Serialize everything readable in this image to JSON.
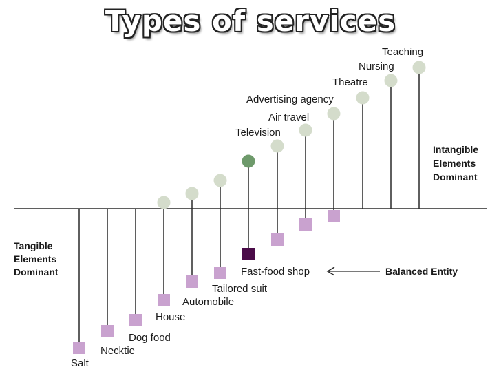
{
  "title": "Types of services",
  "left_label": [
    "Tangible",
    "Elements",
    "Dominant"
  ],
  "right_label": [
    "Intangible",
    "Elements",
    "Dominant"
  ],
  "balanced_label": "Balanced Entity",
  "colors": {
    "tangible": "#c9a2cf",
    "intangible": "#d4dccb",
    "balanced_square": "#4a0b48",
    "balanced_circle": "#6e9a6b",
    "line": "#2a2a2a"
  },
  "items": [
    {
      "label": "Salt",
      "type": "tangible"
    },
    {
      "label": "Necktie",
      "type": "tangible"
    },
    {
      "label": "Dog food",
      "type": "tangible"
    },
    {
      "label": "House",
      "type": "tangible"
    },
    {
      "label": "Automobile",
      "type": "tangible"
    },
    {
      "label": "Tailored suit",
      "type": "tangible"
    },
    {
      "label": "Fast-food shop",
      "type": "balanced"
    },
    {
      "label": "Television",
      "type": "intangible"
    },
    {
      "label": "Air travel",
      "type": "intangible"
    },
    {
      "label": "Advertising agency",
      "type": "intangible"
    },
    {
      "label": "Theatre",
      "type": "intangible"
    },
    {
      "label": "Nursing",
      "type": "intangible"
    },
    {
      "label": "Teaching",
      "type": "intangible"
    }
  ]
}
